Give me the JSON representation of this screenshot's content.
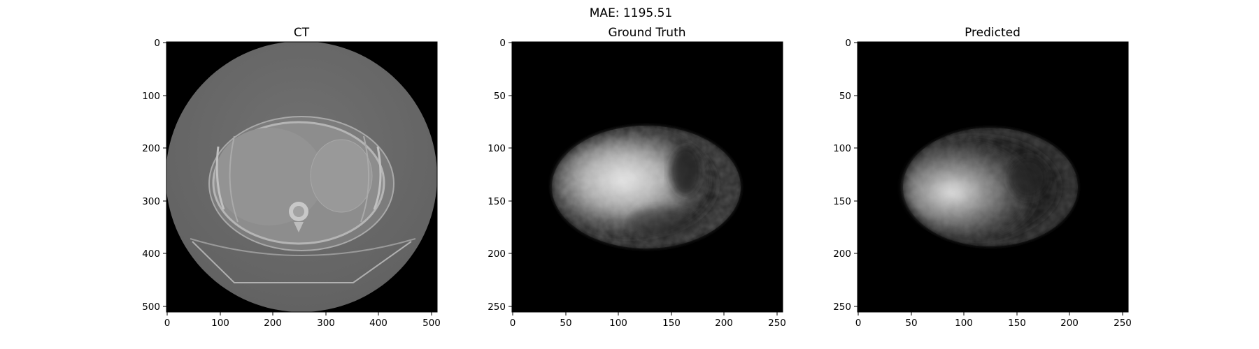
{
  "figure": {
    "suptitle": "MAE: 1195.51"
  },
  "panels": [
    {
      "id": "ct",
      "title": "CT",
      "x_ticks": [
        "0",
        "100",
        "200",
        "300",
        "400",
        "500"
      ],
      "y_ticks": [
        "0",
        "100",
        "200",
        "300",
        "400",
        "500"
      ]
    },
    {
      "id": "ground-truth",
      "title": "Ground Truth",
      "x_ticks": [
        "0",
        "50",
        "100",
        "150",
        "200",
        "250"
      ],
      "y_ticks": [
        "0",
        "50",
        "100",
        "150",
        "200",
        "250"
      ]
    },
    {
      "id": "predicted",
      "title": "Predicted",
      "x_ticks": [
        "0",
        "50",
        "100",
        "150",
        "200",
        "250"
      ],
      "y_ticks": [
        "0",
        "50",
        "100",
        "150",
        "200",
        "250"
      ]
    }
  ],
  "colors": {
    "background": "#000000",
    "ct_fov": "#6a6a6a",
    "ct_body": "#8a8a8a",
    "pet_glow": "#d8d8d8"
  }
}
